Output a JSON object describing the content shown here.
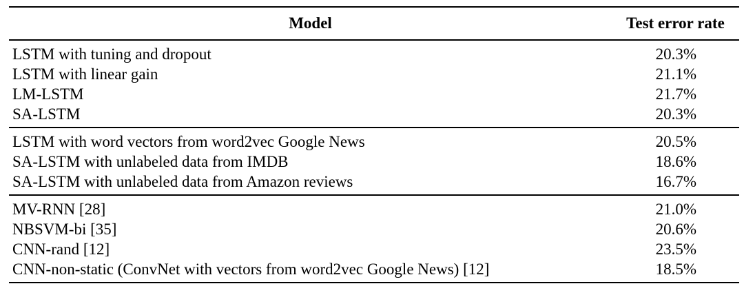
{
  "table": {
    "headers": {
      "model": "Model",
      "error": "Test error rate"
    },
    "groups": [
      [
        {
          "model": "LSTM with tuning and dropout",
          "error": "20.3%"
        },
        {
          "model": "LSTM with linear gain",
          "error": "21.1%"
        },
        {
          "model": "LM-LSTM",
          "error": "21.7%"
        },
        {
          "model": "SA-LSTM",
          "error": "20.3%"
        }
      ],
      [
        {
          "model": "LSTM with word vectors from word2vec Google News",
          "error": "20.5%"
        },
        {
          "model": "SA-LSTM with unlabeled data from IMDB",
          "error": "18.6%"
        },
        {
          "model": "SA-LSTM with unlabeled data from Amazon reviews",
          "error": "16.7%"
        }
      ],
      [
        {
          "model": "MV-RNN [28]",
          "error": "21.0%"
        },
        {
          "model": "NBSVM-bi [35]",
          "error": "20.6%"
        },
        {
          "model": "CNN-rand [12]",
          "error": "23.5%"
        },
        {
          "model": "CNN-non-static (ConvNet with vectors from word2vec Google News) [12]",
          "error": "18.5%"
        }
      ]
    ]
  }
}
